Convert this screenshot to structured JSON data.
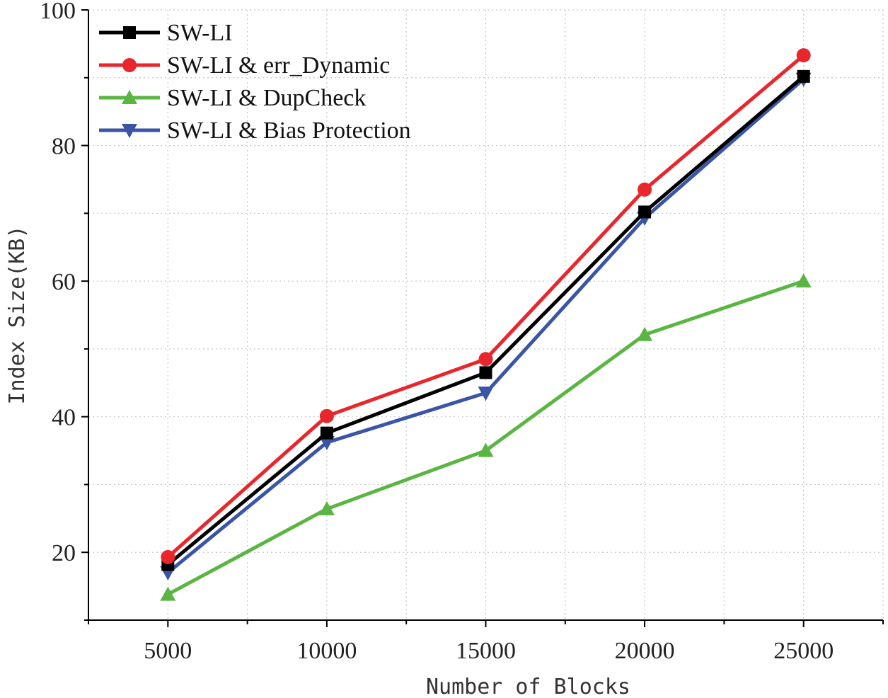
{
  "chart_data": {
    "type": "line",
    "title": "",
    "xlabel": "Number of Blocks",
    "ylabel": "Index Size(KB)",
    "x": [
      5000,
      10000,
      15000,
      20000,
      25000
    ],
    "xlim": [
      2500,
      27500
    ],
    "ylim": [
      10,
      100
    ],
    "xticks": [
      5000,
      10000,
      15000,
      20000,
      25000
    ],
    "yticks": [
      20,
      40,
      60,
      80,
      100
    ],
    "grid": true,
    "legend_position": "top-left",
    "series": [
      {
        "name": "SW-LI",
        "color": "#000000",
        "marker": "square",
        "values": [
          18.2,
          37.6,
          46.5,
          70.2,
          90.2
        ]
      },
      {
        "name": "SW-LI & err_Dynamic",
        "color": "#e8262b",
        "marker": "circle",
        "values": [
          19.3,
          40.1,
          48.5,
          73.5,
          93.3
        ]
      },
      {
        "name": "SW-LI & DupCheck",
        "color": "#5ab543",
        "marker": "triangle-up",
        "values": [
          13.8,
          26.4,
          35.0,
          52.1,
          60.0
        ]
      },
      {
        "name": "SW-LI & Bias Protection",
        "color": "#3a55a6",
        "marker": "triangle-down",
        "values": [
          17.0,
          36.2,
          43.5,
          69.3,
          89.8
        ]
      }
    ]
  }
}
